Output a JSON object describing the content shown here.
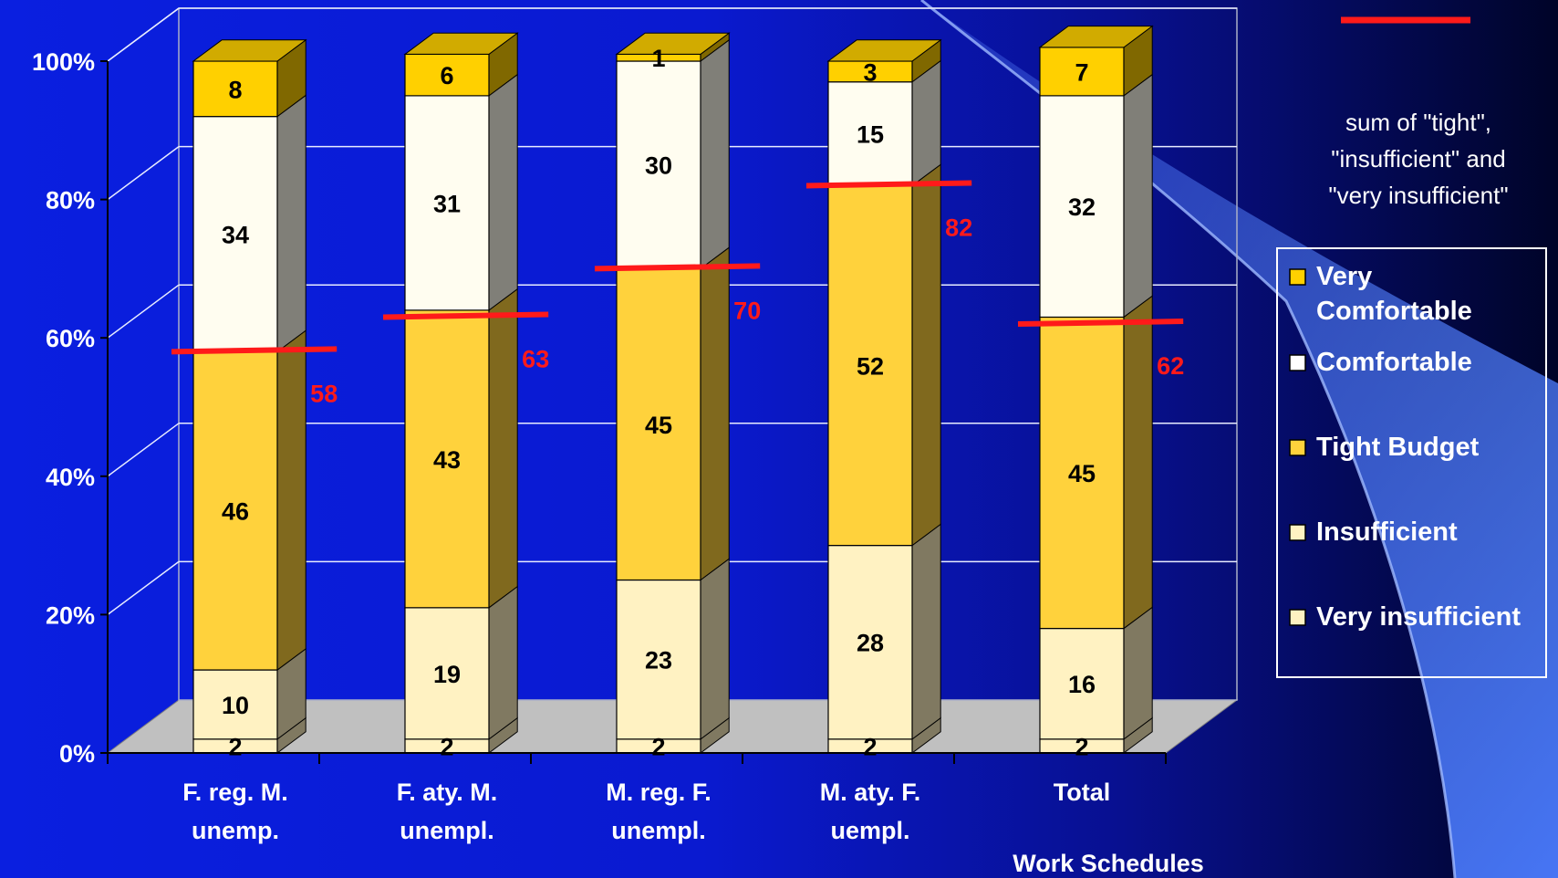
{
  "chart_data": {
    "type": "bar",
    "stacked": true,
    "percent_stacked": true,
    "three_d": true,
    "xlabel": "Work Schedules",
    "ylim": [
      0,
      100
    ],
    "y_ticks": [
      "0%",
      "20%",
      "40%",
      "60%",
      "80%",
      "100%"
    ],
    "grid": true,
    "legend_position": "right",
    "categories": [
      [
        "F. reg. M.",
        "unemp."
      ],
      [
        "F. aty. M.",
        "unempl."
      ],
      [
        "M. reg. F.",
        "unempl."
      ],
      [
        "M. aty. F.",
        "uempl."
      ],
      [
        "Total"
      ]
    ],
    "series": [
      {
        "name": "Very insufficient",
        "values": [
          2,
          2,
          2,
          2,
          2
        ],
        "color": "#fff2c2"
      },
      {
        "name": "Insufficient",
        "values": [
          10,
          19,
          23,
          28,
          16
        ],
        "color": "#fff2c2"
      },
      {
        "name": "Tight Budget",
        "values": [
          46,
          43,
          45,
          52,
          45
        ],
        "color": "#ffd23c"
      },
      {
        "name": "Comfortable",
        "values": [
          34,
          31,
          30,
          15,
          32
        ],
        "color": "#fffdf0"
      },
      {
        "name": "Very Comfortable",
        "values": [
          8,
          6,
          1,
          3,
          7
        ],
        "color": "#ffd000"
      }
    ],
    "sum_line": {
      "legend_text": [
        "sum of \"tight\",",
        "\"insufficient\" and",
        "\"very insufficient\""
      ],
      "values": [
        58,
        63,
        70,
        82,
        62
      ],
      "color": "#ff1a1a"
    },
    "legend_entries": [
      {
        "lines": [
          "Very",
          "Comfortable"
        ],
        "color": "#ffd000"
      },
      {
        "lines": [
          "Comfortable"
        ],
        "color": "#ffffff"
      },
      {
        "lines": [
          "Tight Budget"
        ],
        "color": "#ffd23c"
      },
      {
        "lines": [
          "Insufficient"
        ],
        "color": "#fff2c2"
      },
      {
        "lines": [
          "Very insufficient"
        ],
        "color": "#fff2c2"
      }
    ]
  }
}
